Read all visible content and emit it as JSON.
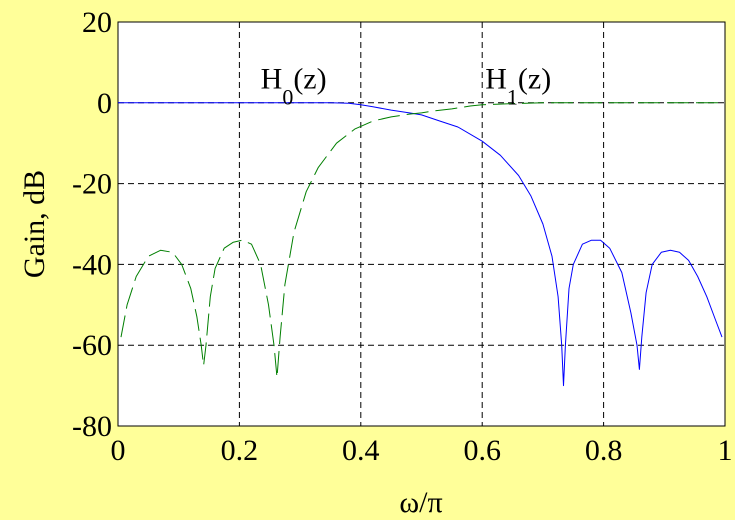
{
  "chart_data": {
    "type": "line",
    "xlabel": "ω/π",
    "ylabel": "Gain, dB",
    "xlim": [
      0,
      1
    ],
    "ylim": [
      -80,
      20
    ],
    "xticks": [
      "0",
      "0.2",
      "0.4",
      "0.6",
      "0.8",
      "1"
    ],
    "yticks": [
      "20",
      "0",
      "-20",
      "-40",
      "-60",
      "-80"
    ],
    "grid": true,
    "background_color": "#ffff99",
    "plot_background_color": "#ffffff",
    "annotations": [
      {
        "base": "H",
        "sub": "0",
        "tail": "(z)",
        "x": 0.235,
        "y": 3.5
      },
      {
        "base": "H",
        "sub": "1",
        "tail": "(z)",
        "x": 0.605,
        "y": 3.5
      }
    ],
    "series": [
      {
        "color": "#0000ff",
        "dash": "solid",
        "x": [
          0,
          0.1,
          0.2,
          0.3,
          0.35,
          0.38,
          0.4,
          0.42,
          0.45,
          0.48,
          0.5,
          0.53,
          0.56,
          0.6,
          0.63,
          0.66,
          0.68,
          0.7,
          0.715,
          0.725,
          0.731,
          0.734,
          0.737,
          0.743,
          0.75,
          0.765,
          0.78,
          0.795,
          0.81,
          0.83,
          0.845,
          0.855,
          0.859,
          0.863,
          0.87,
          0.88,
          0.895,
          0.91,
          0.925,
          0.94,
          0.955,
          0.97,
          0.985,
          0.995
        ],
        "values": [
          0,
          0,
          0,
          0,
          0,
          -0.1,
          -0.5,
          -1.0,
          -1.8,
          -2.5,
          -3.0,
          -4.5,
          -6.0,
          -9.5,
          -13,
          -18,
          -23,
          -30,
          -38,
          -48,
          -60,
          -70,
          -60,
          -46,
          -40,
          -35,
          -34,
          -34,
          -36,
          -42,
          -52,
          -60,
          -66,
          -58,
          -47,
          -40,
          -37,
          -36.5,
          -37,
          -39,
          -43,
          -48,
          -54,
          -58
        ]
      },
      {
        "color": "#007f00",
        "dash": "dashed",
        "x": [
          0.005,
          0.015,
          0.03,
          0.05,
          0.07,
          0.09,
          0.105,
          0.12,
          0.13,
          0.137,
          0.141,
          0.145,
          0.152,
          0.16,
          0.175,
          0.19,
          0.205,
          0.22,
          0.235,
          0.248,
          0.257,
          0.262,
          0.267,
          0.275,
          0.29,
          0.31,
          0.33,
          0.36,
          0.39,
          0.42,
          0.45,
          0.48,
          0.5,
          0.52,
          0.55,
          0.58,
          0.6,
          0.65,
          0.7,
          0.8,
          0.9,
          1.0
        ],
        "values": [
          -58,
          -50,
          -43,
          -38,
          -36.5,
          -37,
          -40,
          -46,
          -53,
          -60,
          -65,
          -60,
          -48,
          -41,
          -36,
          -34.5,
          -34,
          -35,
          -40,
          -50,
          -60,
          -68,
          -58,
          -45,
          -32,
          -22,
          -16,
          -10,
          -6.5,
          -4.5,
          -3.5,
          -2.8,
          -2.5,
          -2,
          -1.5,
          -0.8,
          -0.5,
          -0.2,
          0,
          0,
          0,
          0
        ]
      }
    ]
  }
}
